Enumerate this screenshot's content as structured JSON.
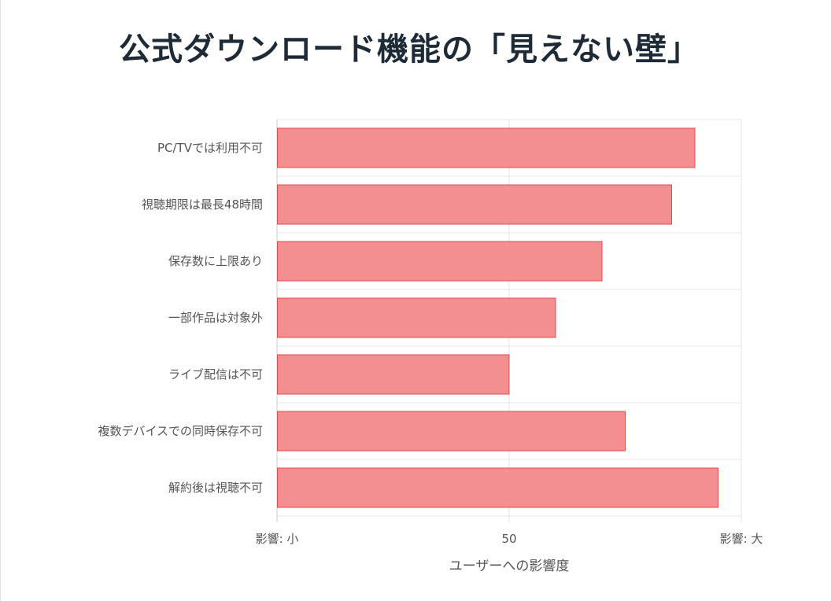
{
  "chart_data": {
    "type": "bar",
    "orientation": "horizontal",
    "title": "公式ダウンロード機能の「見えない壁」",
    "xlabel": "ユーザーへの影響度",
    "ylabel": "",
    "xlim": [
      0,
      100
    ],
    "xticks": [
      {
        "value": 0,
        "label": "影響: 小"
      },
      {
        "value": 50,
        "label": "50"
      },
      {
        "value": 100,
        "label": "影響: 大"
      }
    ],
    "categories": [
      "PC/TVでは利用不可",
      "視聴期限は最長48時間",
      "保存数に上限あり",
      "一部作品は対象外",
      "ライブ配信は不可",
      "複数デバイスでの同時保存不可",
      "解約後は視聴不可"
    ],
    "values": [
      90,
      85,
      70,
      60,
      50,
      75,
      95
    ],
    "bar_fill": "#f48f91",
    "bar_stroke": "#e04b50",
    "grid": true
  }
}
